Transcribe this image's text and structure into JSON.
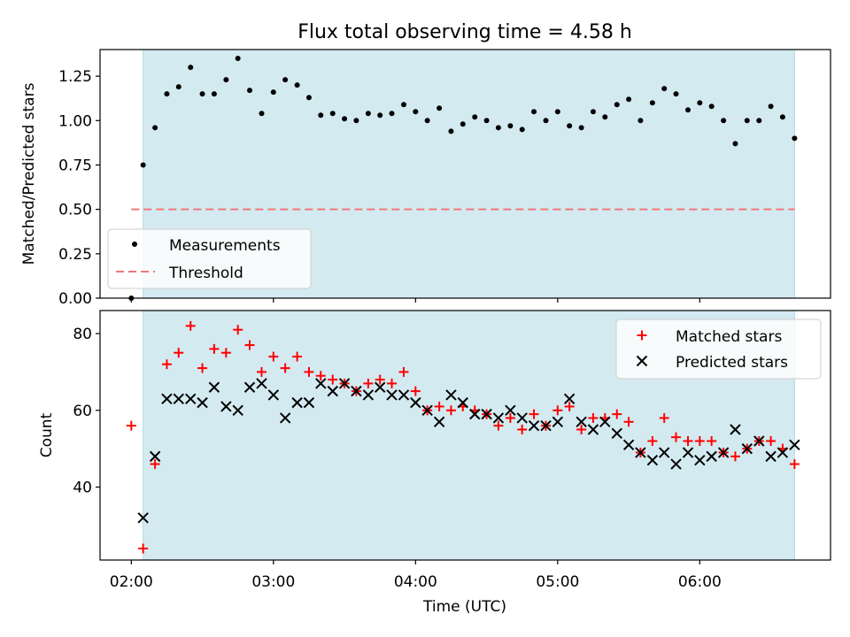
{
  "chart_data": [
    {
      "type": "scatter",
      "title": "Flux total observing time = 4.58 h",
      "xlabel": "",
      "ylabel": "Matched/Predicted stars",
      "ylim": [
        0,
        1.4
      ],
      "xlim_hours": [
        1.78,
        6.92
      ],
      "x_ticks": [
        {
          "value": 2,
          "label": "02:00"
        },
        {
          "value": 3,
          "label": "03:00"
        },
        {
          "value": 4,
          "label": "04:00"
        },
        {
          "value": 5,
          "label": "05:00"
        },
        {
          "value": 6,
          "label": "06:00"
        }
      ],
      "y_ticks": [
        {
          "value": 0.0,
          "label": "0.00"
        },
        {
          "value": 0.25,
          "label": "0.25"
        },
        {
          "value": 0.5,
          "label": "0.50"
        },
        {
          "value": 0.75,
          "label": "0.75"
        },
        {
          "value": 1.0,
          "label": "1.00"
        },
        {
          "value": 1.25,
          "label": "1.25"
        }
      ],
      "observing_window_hours": [
        2.083,
        6.667
      ],
      "legend": {
        "position": "lower-left",
        "measurements": "Measurements",
        "threshold": "Threshold"
      },
      "threshold": {
        "value": 0.5,
        "x_range": [
          2.0,
          6.667
        ]
      },
      "series": [
        {
          "name": "Measurements",
          "x": [
            2.0,
            2.083,
            2.167,
            2.25,
            2.333,
            2.417,
            2.5,
            2.583,
            2.667,
            2.75,
            2.833,
            2.917,
            3.0,
            3.083,
            3.167,
            3.25,
            3.333,
            3.417,
            3.5,
            3.583,
            3.667,
            3.75,
            3.833,
            3.917,
            4.0,
            4.083,
            4.167,
            4.25,
            4.333,
            4.417,
            4.5,
            4.583,
            4.667,
            4.75,
            4.833,
            4.917,
            5.0,
            5.083,
            5.167,
            5.25,
            5.333,
            5.417,
            5.5,
            5.583,
            5.667,
            5.75,
            5.833,
            5.917,
            6.0,
            6.083,
            6.167,
            6.25,
            6.333,
            6.417,
            6.5,
            6.583,
            6.667
          ],
          "values": [
            0.0,
            0.75,
            0.96,
            1.15,
            1.19,
            1.3,
            1.15,
            1.15,
            1.23,
            1.35,
            1.17,
            1.04,
            1.16,
            1.23,
            1.2,
            1.13,
            1.03,
            1.04,
            1.01,
            1.0,
            1.04,
            1.03,
            1.04,
            1.09,
            1.05,
            1.0,
            1.07,
            0.94,
            0.98,
            1.02,
            1.0,
            0.96,
            0.97,
            0.95,
            1.05,
            1.0,
            1.05,
            0.97,
            0.96,
            1.05,
            1.02,
            1.09,
            1.12,
            1.0,
            1.1,
            1.18,
            1.15,
            1.06,
            1.1,
            1.08,
            1.0,
            0.87,
            1.0,
            1.0,
            1.08,
            1.02,
            0.9
          ]
        }
      ]
    },
    {
      "type": "scatter",
      "title": "",
      "xlabel": "Time (UTC)",
      "ylabel": "Count",
      "ylim": [
        21,
        86
      ],
      "xlim_hours": [
        1.78,
        6.92
      ],
      "x_ticks": [
        {
          "value": 2,
          "label": "02:00"
        },
        {
          "value": 3,
          "label": "03:00"
        },
        {
          "value": 4,
          "label": "04:00"
        },
        {
          "value": 5,
          "label": "05:00"
        },
        {
          "value": 6,
          "label": "06:00"
        }
      ],
      "y_ticks": [
        {
          "value": 40,
          "label": "40"
        },
        {
          "value": 60,
          "label": "60"
        },
        {
          "value": 80,
          "label": "80"
        }
      ],
      "observing_window_hours": [
        2.083,
        6.667
      ],
      "legend": {
        "position": "upper-right"
      },
      "series": [
        {
          "name": "Matched stars",
          "marker": "plus",
          "color": "#ff0000",
          "x": [
            2.0,
            2.083,
            2.167,
            2.25,
            2.333,
            2.417,
            2.5,
            2.583,
            2.667,
            2.75,
            2.833,
            2.917,
            3.0,
            3.083,
            3.167,
            3.25,
            3.333,
            3.417,
            3.5,
            3.583,
            3.667,
            3.75,
            3.833,
            3.917,
            4.0,
            4.083,
            4.167,
            4.25,
            4.333,
            4.417,
            4.5,
            4.583,
            4.667,
            4.75,
            4.833,
            4.917,
            5.0,
            5.083,
            5.167,
            5.25,
            5.333,
            5.417,
            5.5,
            5.583,
            5.667,
            5.75,
            5.833,
            5.917,
            6.0,
            6.083,
            6.167,
            6.25,
            6.333,
            6.417,
            6.5,
            6.583,
            6.667
          ],
          "values": [
            56,
            24,
            46,
            72,
            75,
            82,
            71,
            76,
            75,
            81,
            77,
            70,
            74,
            71,
            74,
            70,
            69,
            68,
            67,
            65,
            67,
            68,
            67,
            70,
            65,
            60,
            61,
            60,
            61,
            60,
            59,
            56,
            58,
            55,
            59,
            56,
            60,
            61,
            55,
            58,
            58,
            59,
            57,
            49,
            52,
            58,
            53,
            52,
            52,
            52,
            49,
            48,
            50,
            52,
            52,
            50,
            46
          ]
        },
        {
          "name": "Predicted stars",
          "marker": "x",
          "color": "#000000",
          "x": [
            2.083,
            2.167,
            2.25,
            2.333,
            2.417,
            2.5,
            2.583,
            2.667,
            2.75,
            2.833,
            2.917,
            3.0,
            3.083,
            3.167,
            3.25,
            3.333,
            3.417,
            3.5,
            3.583,
            3.667,
            3.75,
            3.833,
            3.917,
            4.0,
            4.083,
            4.167,
            4.25,
            4.333,
            4.417,
            4.5,
            4.583,
            4.667,
            4.75,
            4.833,
            4.917,
            5.0,
            5.083,
            5.167,
            5.25,
            5.333,
            5.417,
            5.5,
            5.583,
            5.667,
            5.75,
            5.833,
            5.917,
            6.0,
            6.083,
            6.167,
            6.25,
            6.333,
            6.417,
            6.5,
            6.583,
            6.667
          ],
          "values": [
            32,
            48,
            63,
            63,
            63,
            62,
            66,
            61,
            60,
            66,
            67,
            64,
            58,
            62,
            62,
            67,
            65,
            67,
            65,
            64,
            66,
            64,
            64,
            62,
            60,
            57,
            64,
            62,
            59,
            59,
            58,
            60,
            58,
            56,
            56,
            57,
            63,
            57,
            55,
            57,
            54,
            51,
            49,
            47,
            49,
            46,
            49,
            47,
            48,
            49,
            55,
            50,
            52,
            48,
            49,
            51
          ]
        }
      ]
    }
  ],
  "colors": {
    "band": "#d4eaf1",
    "band_edge": "#b7d8e3",
    "threshold": "#f07878",
    "matched": "#ff0000",
    "predicted": "#000000",
    "measurement": "#000000"
  }
}
